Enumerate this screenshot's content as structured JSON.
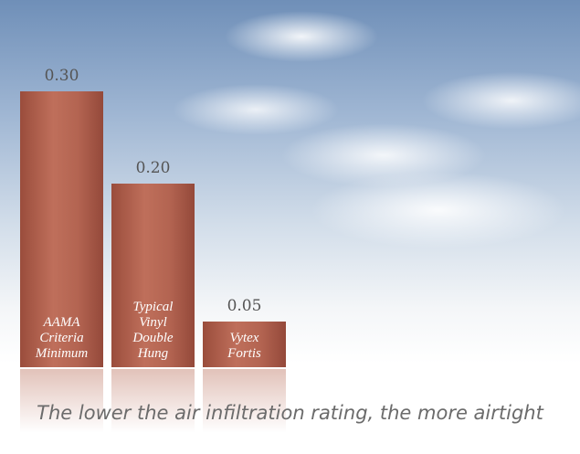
{
  "chart_data": {
    "type": "bar",
    "categories": [
      "AAMA Criteria Minimum",
      "Typical Vinyl Double Hung",
      "Vytex Fortis"
    ],
    "values": [
      0.3,
      0.2,
      0.05
    ],
    "value_labels": [
      "0.30",
      "0.20",
      "0.05"
    ],
    "color": "#b0604d",
    "ylim": [
      0,
      0.3
    ],
    "caption": "The lower the air infiltration rating, the more airtight"
  }
}
